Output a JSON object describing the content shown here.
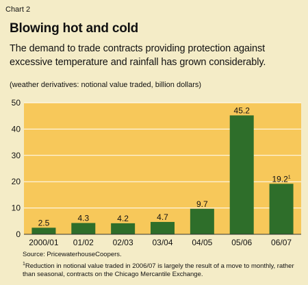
{
  "header": {
    "chart_number": "Chart 2",
    "title": "Blowing hot and cold",
    "subtitle": "The demand to trade contracts providing protection against excessive temperature and rainfall has grown considerably."
  },
  "chart_data": {
    "type": "bar",
    "units_label": "(weather derivatives: notional value traded, billion dollars)",
    "categories": [
      "2000/01",
      "01/02",
      "02/03",
      "03/04",
      "04/05",
      "05/06",
      "06/07"
    ],
    "values": [
      2.5,
      4.3,
      4.2,
      4.7,
      9.7,
      45.2,
      19.2
    ],
    "value_labels": [
      "2.5",
      "4.3",
      "4.2",
      "4.7",
      "9.7",
      "45.2",
      "19.2"
    ],
    "value_label_superscripts": [
      "",
      "",
      "",
      "",
      "",
      "",
      "1"
    ],
    "ylim": [
      0,
      50
    ],
    "yticks": [
      0,
      10,
      20,
      30,
      40,
      50
    ],
    "grid": true,
    "legend": "none",
    "colors": {
      "bar": "#2e6e2a",
      "plot_background": "#f7c85a",
      "grid": "#ffffff",
      "page_background": "#f4ecc7"
    }
  },
  "footer": {
    "source": "Source: PricewaterhouseCoopers.",
    "footnote_marker": "1",
    "footnote": "Reduction in notional value traded in 2006/07 is largely the result of a move to monthly, rather than seasonal, contracts on the Chicago Mercantile Exchange."
  }
}
